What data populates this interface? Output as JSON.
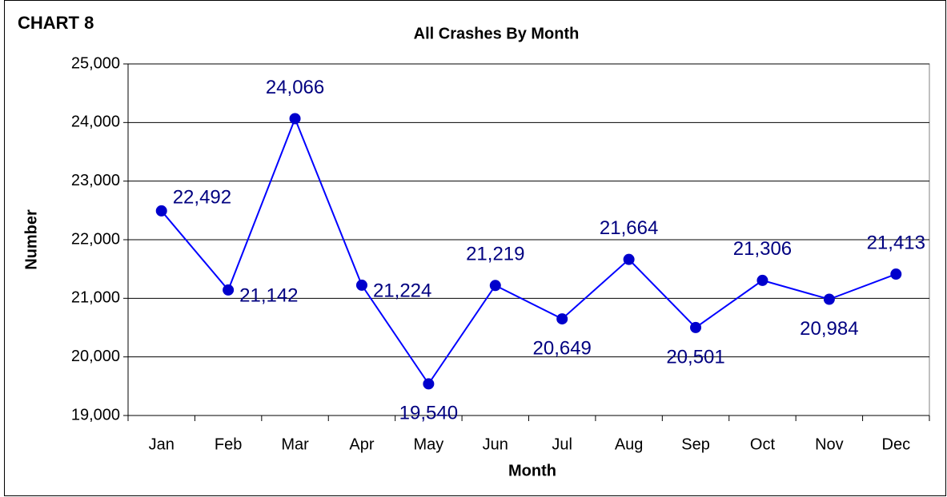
{
  "chart_data": {
    "type": "line",
    "annotation": "CHART 8",
    "title": "All Crashes By Month",
    "x_label": "Month",
    "y_label": "Number",
    "categories": [
      "Jan",
      "Feb",
      "Mar",
      "Apr",
      "May",
      "Jun",
      "Jul",
      "Aug",
      "Sep",
      "Oct",
      "Nov",
      "Dec"
    ],
    "values": [
      22492,
      21142,
      24066,
      21224,
      19540,
      21219,
      20649,
      21664,
      20501,
      21306,
      20984,
      21413
    ],
    "value_labels": [
      "22,492",
      "21,142",
      "24,066",
      "21,224",
      "19,540",
      "21,219",
      "20,649",
      "21,664",
      "20,501",
      "21,306",
      "20,984",
      "21,413"
    ],
    "color": "#0000ff",
    "marker_color": "#0000cc",
    "label_color": "#000080",
    "ylim": [
      19000,
      25000
    ],
    "yticks": [
      {
        "value": 19000,
        "label": "19,000"
      },
      {
        "value": 20000,
        "label": "20,000"
      },
      {
        "value": 21000,
        "label": "21,000"
      },
      {
        "value": 22000,
        "label": "22,000"
      },
      {
        "value": 23000,
        "label": "23,000"
      },
      {
        "value": 24000,
        "label": "24,000"
      },
      {
        "value": 25000,
        "label": "25,000"
      }
    ],
    "grid": true
  }
}
